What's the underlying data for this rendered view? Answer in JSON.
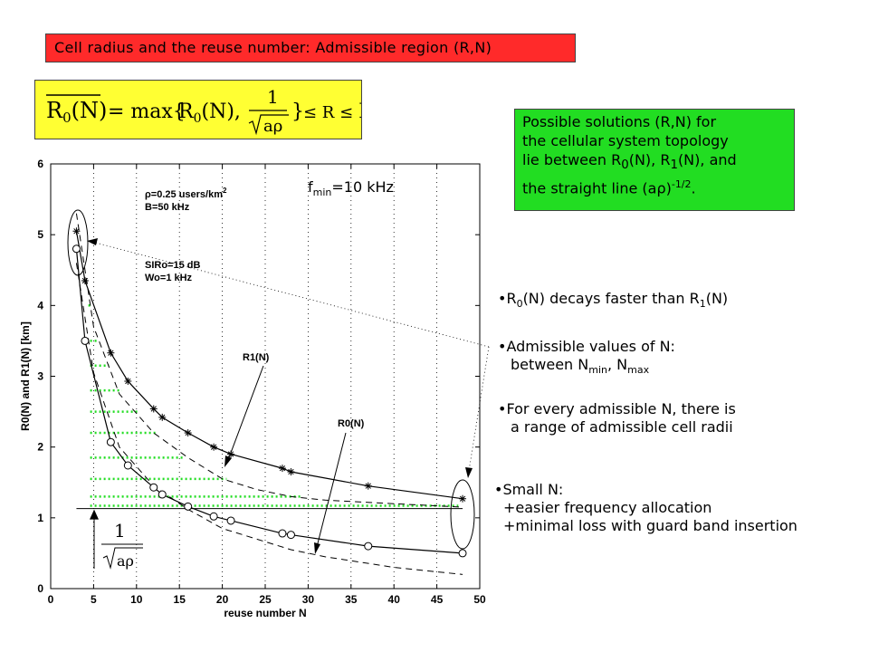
{
  "slide": {
    "title": "Cell radius and the reuse number: Admissible region (R,N)",
    "formula": {
      "lhs_base": "R",
      "lhs_sub": "0",
      "lhs_arg": "(N)",
      "eq": "= max{",
      "r0": "R",
      "r0_sub": "0",
      "r0_arg": "(N),",
      "frac_num": "1",
      "frac_den": "aρ",
      "close": "}",
      "le1": "≤ R ≤",
      "r1": "R",
      "r1_sub": "1",
      "r1_arg": "(N)"
    },
    "solution_note": {
      "line1": "Possible solutions (R,N) for",
      "line2": "the cellular system topology",
      "line3a": "lie between R",
      "line3b": "0",
      "line3c": "(N), R",
      "line3d": "1",
      "line3e": "(N), and",
      "line4a": "the straight line (aρ)",
      "line4b": "-1/2",
      "line4c": "."
    },
    "fmin": {
      "base": "f",
      "sub": "min",
      "rest": "=10 kHz"
    },
    "bullets": {
      "b1": {
        "a": "•R",
        "b": "0",
        "c": "(N) decays faster than R",
        "d": "1",
        "e": "(N)"
      },
      "b2": {
        "line1": "•Admissible values of N:",
        "line2a": "between N",
        "line2b": "min",
        "line2c": ", N",
        "line2d": "max"
      },
      "b3": {
        "line1": "•For every admissible N, there is",
        "line2": "a range of admissible cell radii"
      },
      "b4": {
        "line1": "•Small N:",
        "line2": "+easier frequency allocation",
        "line3": "+minimal loss with guard band insertion"
      }
    }
  },
  "chart_data": {
    "type": "line",
    "xlabel": "reuse number N",
    "ylabel": "R0(N) and R1(N)  [km]",
    "xlim": [
      0,
      50
    ],
    "ylim": [
      0,
      6
    ],
    "xticks": [
      0,
      5,
      10,
      15,
      20,
      25,
      30,
      35,
      40,
      45,
      50
    ],
    "yticks": [
      0,
      1,
      2,
      3,
      4,
      5,
      6
    ],
    "grid": "dotted vertical",
    "annotations": {
      "params1": "ρ=0.25 users/km",
      "params1_sup": "2",
      "params2": "B=50 kHz",
      "params3": "SIRo=15 dB",
      "params4": "Wo=1 kHz",
      "r1_label": "R1(N)",
      "r0_label": "R0(N)",
      "inv_num": "1",
      "inv_den": "aρ"
    },
    "series": [
      {
        "name": "R1(N)",
        "marker": "star",
        "x": [
          3,
          4,
          7,
          9,
          12,
          13,
          16,
          19,
          21,
          27,
          28,
          37,
          48
        ],
        "y": [
          5.05,
          4.35,
          3.33,
          2.93,
          2.54,
          2.42,
          2.2,
          2.0,
          1.9,
          1.7,
          1.65,
          1.45,
          1.27
        ]
      },
      {
        "name": "R0(N)",
        "marker": "circle",
        "x": [
          3,
          4,
          7,
          9,
          12,
          13,
          16,
          19,
          21,
          27,
          28,
          37,
          48
        ],
        "y": [
          4.8,
          3.5,
          2.07,
          1.74,
          1.43,
          1.33,
          1.16,
          1.02,
          0.96,
          0.78,
          0.76,
          0.6,
          0.5
        ]
      },
      {
        "name": "dashed-upper",
        "x": [
          3,
          5,
          8,
          12,
          16,
          20,
          24,
          28,
          32,
          40,
          48
        ],
        "y": [
          5.3,
          3.7,
          2.75,
          2.2,
          1.85,
          1.55,
          1.4,
          1.3,
          1.25,
          1.2,
          1.15
        ]
      },
      {
        "name": "dashed-lower",
        "x": [
          3,
          5,
          8,
          12,
          16,
          20,
          24,
          28,
          32,
          40,
          48
        ],
        "y": [
          4.6,
          3.05,
          2.0,
          1.45,
          1.12,
          0.85,
          0.7,
          0.55,
          0.45,
          0.3,
          0.2
        ]
      },
      {
        "name": "inv-sqrt-line",
        "x": [
          3,
          48
        ],
        "y": [
          1.13,
          1.13
        ]
      }
    ],
    "admissible_rows": [
      {
        "n": 5,
        "y": 4.0,
        "x1": 4.3
      },
      {
        "n": 6,
        "y": 3.5,
        "x1": 5.6
      },
      {
        "n": 6,
        "y": 3.15,
        "x1": 6.8
      },
      {
        "n": 7,
        "y": 2.8,
        "x1": 8.3
      },
      {
        "n": 8,
        "y": 2.5,
        "x1": 10.1
      },
      {
        "n": 9,
        "y": 2.2,
        "x1": 12.3
      },
      {
        "n": 10,
        "y": 1.85,
        "x1": 15.5
      },
      {
        "n": 12,
        "y": 1.55,
        "x1": 20.5
      },
      {
        "n": 14,
        "y": 1.3,
        "x1": 29.3
      },
      {
        "n": 16,
        "y": 1.17,
        "x1": 47.5
      }
    ]
  }
}
